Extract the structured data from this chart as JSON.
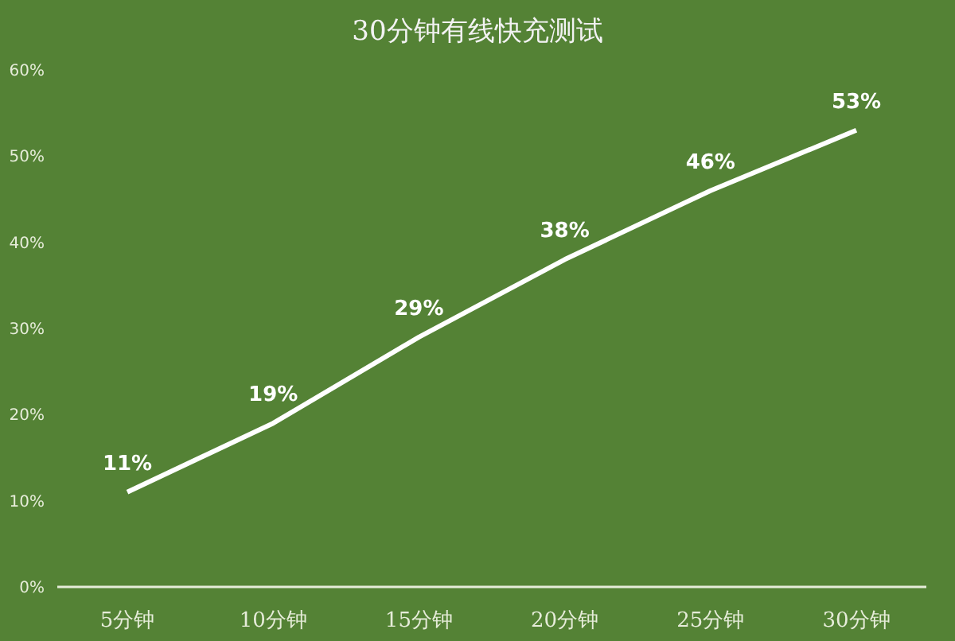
{
  "chart_data": {
    "type": "line",
    "title": "30分钟有线快充测试",
    "categories": [
      "5分钟",
      "10分钟",
      "15分钟",
      "20分钟",
      "25分钟",
      "30分钟"
    ],
    "series": [
      {
        "color": "#ffffff",
        "values": [
          11,
          19,
          29,
          38,
          46,
          53
        ],
        "value_labels": [
          "11%",
          "19%",
          "29%",
          "38%",
          "46%",
          "53%"
        ]
      }
    ],
    "ylim": [
      0,
      60
    ],
    "yticks": [
      {
        "value": 0,
        "label": "0%"
      },
      {
        "value": 10,
        "label": "10%"
      },
      {
        "value": 20,
        "label": "20%"
      },
      {
        "value": 30,
        "label": "30%"
      },
      {
        "value": 40,
        "label": "40%"
      },
      {
        "value": 50,
        "label": "50%"
      },
      {
        "value": 60,
        "label": "60%"
      }
    ],
    "grid": false,
    "legend": false,
    "marker": "none",
    "line_style": "solid"
  }
}
